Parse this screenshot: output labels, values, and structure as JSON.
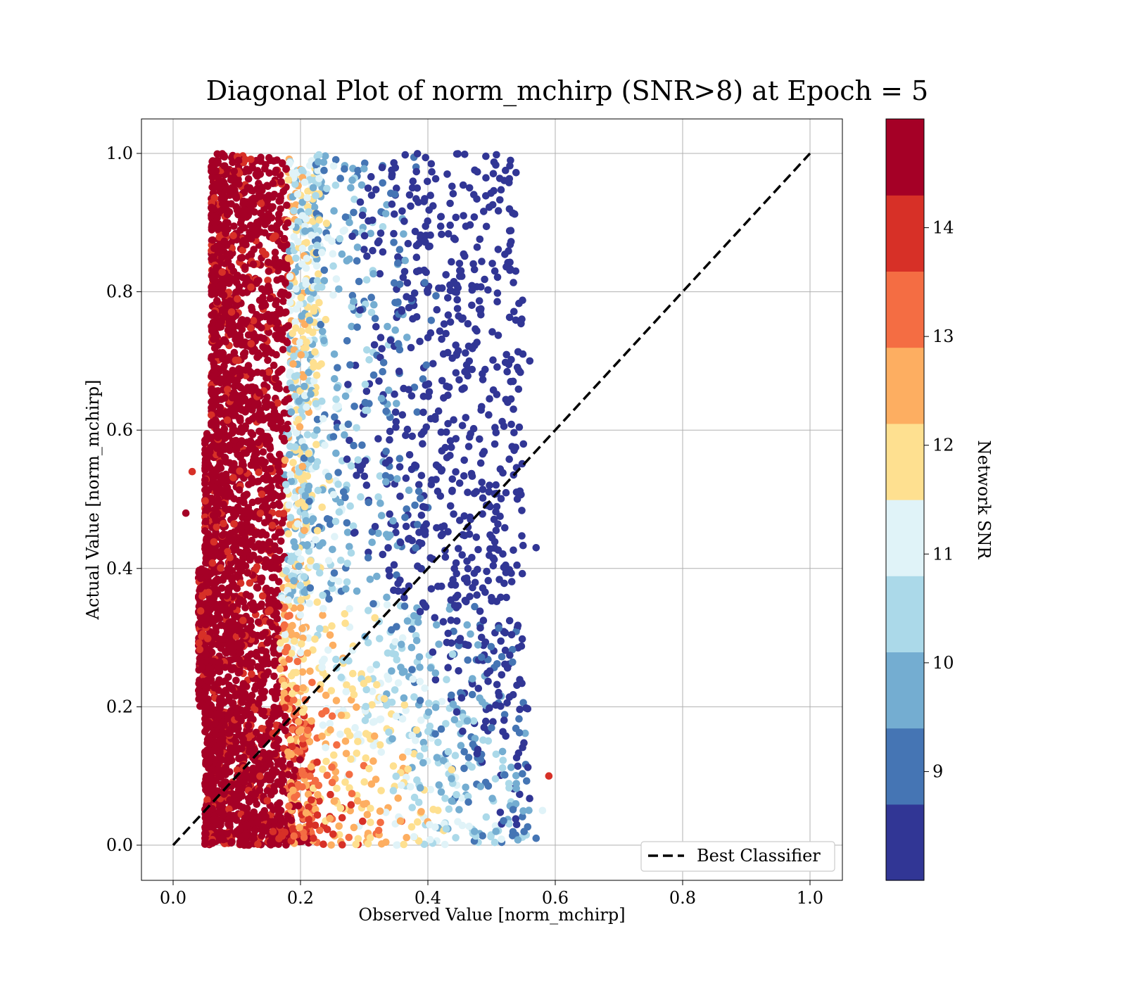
{
  "chart_data": {
    "type": "scatter",
    "title": "Diagonal Plot of norm_mchirp (SNR>8) at Epoch = 5",
    "xlabel": "Observed Value [norm_mchirp]",
    "ylabel": "Actual Value [norm_mchirp]",
    "xlim": [
      -0.05,
      1.05
    ],
    "ylim": [
      -0.05,
      1.05
    ],
    "x_ticks": [
      "0.0",
      "0.2",
      "0.4",
      "0.6",
      "0.8",
      "1.0"
    ],
    "y_ticks": [
      "0.0",
      "0.2",
      "0.4",
      "0.6",
      "0.8",
      "1.0"
    ],
    "grid": true,
    "legend_position": "lower-right",
    "reference_line": {
      "label": "Best Classifier",
      "x": [
        0,
        1
      ],
      "y": [
        0,
        1
      ],
      "style": "dashed",
      "color": "#000000"
    },
    "colorbar": {
      "label": "Network SNR",
      "range": [
        8,
        15
      ],
      "ticks": [
        "9",
        "10",
        "11",
        "12",
        "13",
        "14"
      ],
      "levels": 10,
      "colors": [
        "#313695",
        "#4575b4",
        "#74add1",
        "#abd9e9",
        "#e0f3f8",
        "#fee090",
        "#fdae61",
        "#f46d43",
        "#d73027",
        "#a50026"
      ]
    },
    "series": [
      {
        "description_bands": [
          {
            "y": [
              0.0,
              0.2
            ],
            "x_min": 0.05,
            "x_max": 0.56
          },
          {
            "y": [
              0.2,
              0.4
            ],
            "x_min": 0.04,
            "x_max": 0.55
          },
          {
            "y": [
              0.4,
              0.6
            ],
            "x_min": 0.05,
            "x_max": 0.55
          },
          {
            "y": [
              0.6,
              0.8
            ],
            "x_min": 0.06,
            "x_max": 0.55
          },
          {
            "y": [
              0.8,
              1.0
            ],
            "x_min": 0.06,
            "x_max": 0.54
          }
        ],
        "outliers": [
          {
            "x": 0.02,
            "y": 0.48,
            "snr": 14.5
          },
          {
            "x": 0.03,
            "y": 0.54,
            "snr": 14.2
          },
          {
            "x": 0.57,
            "y": 0.43,
            "snr": 8.5
          },
          {
            "x": 0.59,
            "y": 0.1,
            "snr": 14.0
          },
          {
            "x": 0.58,
            "y": 0.05,
            "snr": 11.0
          },
          {
            "x": 0.57,
            "y": 0.01,
            "snr": 9.0
          },
          {
            "x": 0.56,
            "y": 0.7,
            "snr": 8.5
          },
          {
            "x": 0.55,
            "y": 0.58,
            "snr": 8.5
          }
        ]
      }
    ]
  }
}
